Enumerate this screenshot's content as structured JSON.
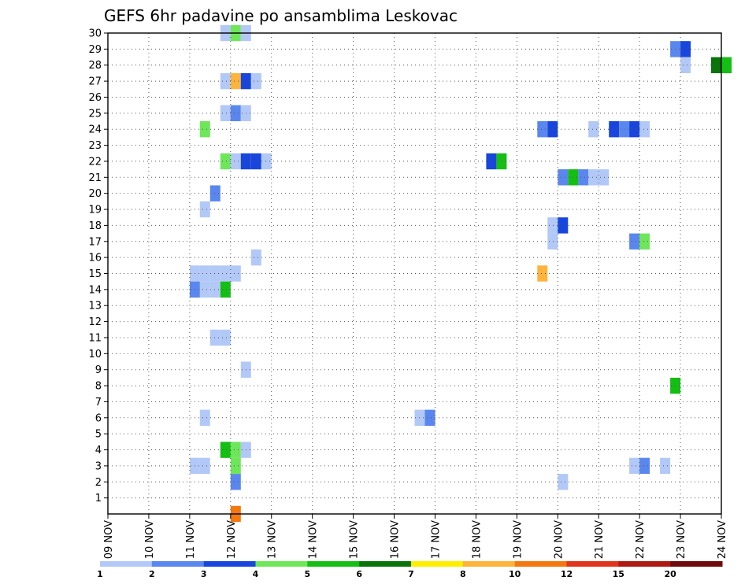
{
  "chart_data": {
    "type": "heatmap",
    "title": "GEFS 6hr padavine po ansamblima Leskovac",
    "x_ticks": [
      "09 NOV",
      "10 NOV",
      "11 NOV",
      "12 NOV",
      "13 NOV",
      "14 NOV",
      "15 NOV",
      "16 NOV",
      "17 NOV",
      "18 NOV",
      "19 NOV",
      "20 NOV",
      "21 NOV",
      "22 NOV",
      "23 NOV",
      "24 NOV"
    ],
    "y_ticks": [
      "1",
      "2",
      "3",
      "4",
      "5",
      "6",
      "7",
      "8",
      "9",
      "10",
      "11",
      "12",
      "13",
      "14",
      "15",
      "16",
      "17",
      "18",
      "19",
      "20",
      "21",
      "22",
      "23",
      "24",
      "25",
      "26",
      "27",
      "28",
      "29",
      "30"
    ],
    "grid": true,
    "legend": {
      "position": "bottom",
      "labels": [
        "1",
        "2",
        "3",
        "4",
        "5",
        "6",
        "7",
        "8",
        "10",
        "12",
        "15",
        "20"
      ],
      "colors": [
        "#b2c8f7",
        "#5a87ee",
        "#1846dc",
        "#6ee65a",
        "#14be14",
        "#0a730a",
        "#ffee00",
        "#fcb43c",
        "#f3780f",
        "#e1341c",
        "#ae1912",
        "#6e0a0a"
      ]
    },
    "cells_note": "Each cell: member (y), start day offset in days from 09 NOV (x), precipitation value (mm/6h)",
    "cells": [
      {
        "m": 30,
        "x": 2.75,
        "v": 1
      },
      {
        "m": 30,
        "x": 3.0,
        "v": 4
      },
      {
        "m": 30,
        "x": 3.25,
        "v": 1
      },
      {
        "m": 29,
        "x": 13.75,
        "v": 2
      },
      {
        "m": 29,
        "x": 14.0,
        "v": 3
      },
      {
        "m": 28,
        "x": 14.0,
        "v": 1
      },
      {
        "m": 28,
        "x": 14.75,
        "v": 6
      },
      {
        "m": 28,
        "x": 15.0,
        "v": 5
      },
      {
        "m": 27,
        "x": 2.75,
        "v": 1
      },
      {
        "m": 27,
        "x": 3.0,
        "v": 8
      },
      {
        "m": 27,
        "x": 3.25,
        "v": 3
      },
      {
        "m": 27,
        "x": 3.5,
        "v": 1
      },
      {
        "m": 25,
        "x": 2.75,
        "v": 1
      },
      {
        "m": 25,
        "x": 3.0,
        "v": 2
      },
      {
        "m": 25,
        "x": 3.25,
        "v": 1
      },
      {
        "m": 24,
        "x": 2.25,
        "v": 4
      },
      {
        "m": 24,
        "x": 10.5,
        "v": 2
      },
      {
        "m": 24,
        "x": 10.75,
        "v": 3
      },
      {
        "m": 24,
        "x": 11.75,
        "v": 1
      },
      {
        "m": 24,
        "x": 12.25,
        "v": 3
      },
      {
        "m": 24,
        "x": 12.5,
        "v": 2
      },
      {
        "m": 24,
        "x": 12.75,
        "v": 3
      },
      {
        "m": 24,
        "x": 13.0,
        "v": 1
      },
      {
        "m": 22,
        "x": 2.75,
        "v": 4
      },
      {
        "m": 22,
        "x": 3.0,
        "v": 1
      },
      {
        "m": 22,
        "x": 3.25,
        "v": 3
      },
      {
        "m": 22,
        "x": 3.5,
        "v": 3
      },
      {
        "m": 22,
        "x": 3.75,
        "v": 1
      },
      {
        "m": 22,
        "x": 9.25,
        "v": 3
      },
      {
        "m": 22,
        "x": 9.5,
        "v": 5
      },
      {
        "m": 21,
        "x": 11.0,
        "v": 2
      },
      {
        "m": 21,
        "x": 11.25,
        "v": 5
      },
      {
        "m": 21,
        "x": 11.5,
        "v": 2
      },
      {
        "m": 21,
        "x": 11.75,
        "v": 1
      },
      {
        "m": 21,
        "x": 12.0,
        "v": 1
      },
      {
        "m": 20,
        "x": 2.5,
        "v": 2
      },
      {
        "m": 19,
        "x": 2.25,
        "v": 1
      },
      {
        "m": 18,
        "x": 10.75,
        "v": 1
      },
      {
        "m": 18,
        "x": 11.0,
        "v": 3
      },
      {
        "m": 17,
        "x": 10.75,
        "v": 1
      },
      {
        "m": 17,
        "x": 12.75,
        "v": 2
      },
      {
        "m": 17,
        "x": 13.0,
        "v": 4
      },
      {
        "m": 16,
        "x": 3.5,
        "v": 1
      },
      {
        "m": 15,
        "x": 2.0,
        "v": 1
      },
      {
        "m": 15,
        "x": 2.25,
        "v": 1
      },
      {
        "m": 15,
        "x": 2.5,
        "v": 1
      },
      {
        "m": 15,
        "x": 2.75,
        "v": 1
      },
      {
        "m": 15,
        "x": 3.0,
        "v": 1
      },
      {
        "m": 15,
        "x": 10.5,
        "v": 8
      },
      {
        "m": 14,
        "x": 2.0,
        "v": 2
      },
      {
        "m": 14,
        "x": 2.25,
        "v": 1
      },
      {
        "m": 14,
        "x": 2.5,
        "v": 1
      },
      {
        "m": 14,
        "x": 2.75,
        "v": 5
      },
      {
        "m": 11,
        "x": 2.5,
        "v": 1
      },
      {
        "m": 11,
        "x": 2.75,
        "v": 1
      },
      {
        "m": 9,
        "x": 3.25,
        "v": 1
      },
      {
        "m": 8,
        "x": 13.75,
        "v": 5
      },
      {
        "m": 6,
        "x": 2.25,
        "v": 1
      },
      {
        "m": 6,
        "x": 7.5,
        "v": 1
      },
      {
        "m": 6,
        "x": 7.75,
        "v": 2
      },
      {
        "m": 4,
        "x": 2.75,
        "v": 5
      },
      {
        "m": 4,
        "x": 3.0,
        "v": 4
      },
      {
        "m": 4,
        "x": 3.25,
        "v": 1
      },
      {
        "m": 3,
        "x": 2.0,
        "v": 1
      },
      {
        "m": 3,
        "x": 2.25,
        "v": 1
      },
      {
        "m": 3,
        "x": 3.0,
        "v": 4
      },
      {
        "m": 3,
        "x": 12.75,
        "v": 1
      },
      {
        "m": 3,
        "x": 13.0,
        "v": 2
      },
      {
        "m": 3,
        "x": 13.5,
        "v": 1
      },
      {
        "m": 2,
        "x": 3.0,
        "v": 2
      },
      {
        "m": 2,
        "x": 11.0,
        "v": 1
      },
      {
        "m": 0,
        "x": 3.0,
        "v": 10
      }
    ]
  }
}
